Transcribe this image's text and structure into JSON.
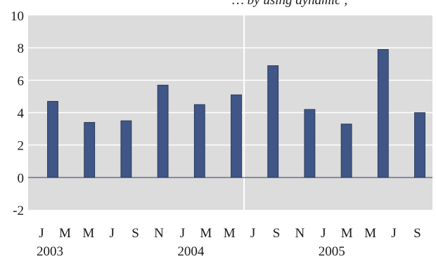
{
  "chart_data": {
    "type": "bar",
    "title": "… by using dynamic ,",
    "xlabel": "",
    "ylabel": "",
    "ylim": [
      -2,
      10
    ],
    "y_ticks": [
      -2,
      0,
      2,
      4,
      6,
      8,
      10
    ],
    "grid": true,
    "legend": "none",
    "colors": {
      "plot_background": "#dcdcdc",
      "bar": "#3f5686",
      "bar_edge": "#1f2d4d",
      "gridline": "#ffffff",
      "zero_line": "#2c3e66"
    },
    "categories": [
      "J",
      "M",
      "M",
      "J",
      "S",
      "N",
      "J",
      "M",
      "M",
      "J",
      "S",
      "N",
      "J",
      "M",
      "M",
      "J",
      "S"
    ],
    "years": [
      {
        "label": "2003",
        "start_index": 0
      },
      {
        "label": "2004",
        "start_index": 6
      },
      {
        "label": "2005",
        "start_index": 12
      }
    ],
    "bars": [
      {
        "index": 0,
        "value": 4.7
      },
      {
        "index": 2,
        "value": 3.4
      },
      {
        "index": 4,
        "value": 3.5
      },
      {
        "index": 6,
        "value": 5.7
      },
      {
        "index": 8,
        "value": 4.5
      },
      {
        "index": 10,
        "value": 5.1
      },
      {
        "index": 12,
        "value": 6.9
      },
      {
        "index": 14,
        "value": 4.2
      },
      {
        "index": 16,
        "value": 3.3
      },
      {
        "index": 18,
        "value": 7.9
      },
      {
        "index": 20,
        "value": 4.0
      }
    ]
  }
}
